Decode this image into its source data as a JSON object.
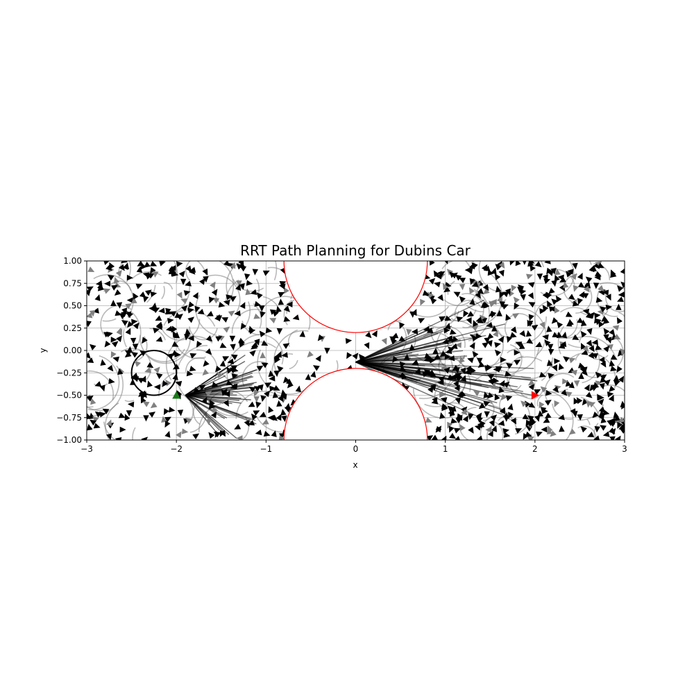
{
  "chart_data": {
    "type": "scatter",
    "title": "RRT Path Planning for Dubins Car",
    "xlabel": "x",
    "ylabel": "y",
    "xlim": [
      -3,
      3
    ],
    "ylim": [
      -1,
      1
    ],
    "x_ticks": [
      -3,
      -2,
      -1,
      0,
      1,
      2,
      3
    ],
    "x_tick_labels": [
      "−3",
      "−2",
      "−1",
      "0",
      "1",
      "2",
      "3"
    ],
    "y_ticks": [
      -1.0,
      -0.75,
      -0.5,
      -0.25,
      0.0,
      0.25,
      0.5,
      0.75,
      1.0
    ],
    "y_tick_labels": [
      "−1.00",
      "−0.75",
      "−0.50",
      "−0.25",
      "0.00",
      "0.25",
      "0.50",
      "0.75",
      "1.00"
    ],
    "grid": true,
    "obstacles": [
      {
        "cx": 0,
        "cy": 1.0,
        "r": 0.8,
        "color": "#ff0000"
      },
      {
        "cx": 0,
        "cy": -1.0,
        "r": 0.8,
        "color": "#ff0000"
      }
    ],
    "start": {
      "x": -2.0,
      "y": -0.5,
      "color": "#1a7a1a"
    },
    "goal": {
      "x": 2.0,
      "y": -0.5,
      "color": "#ff0000"
    },
    "tree_color": "#000000",
    "edge_color": "#808080"
  }
}
